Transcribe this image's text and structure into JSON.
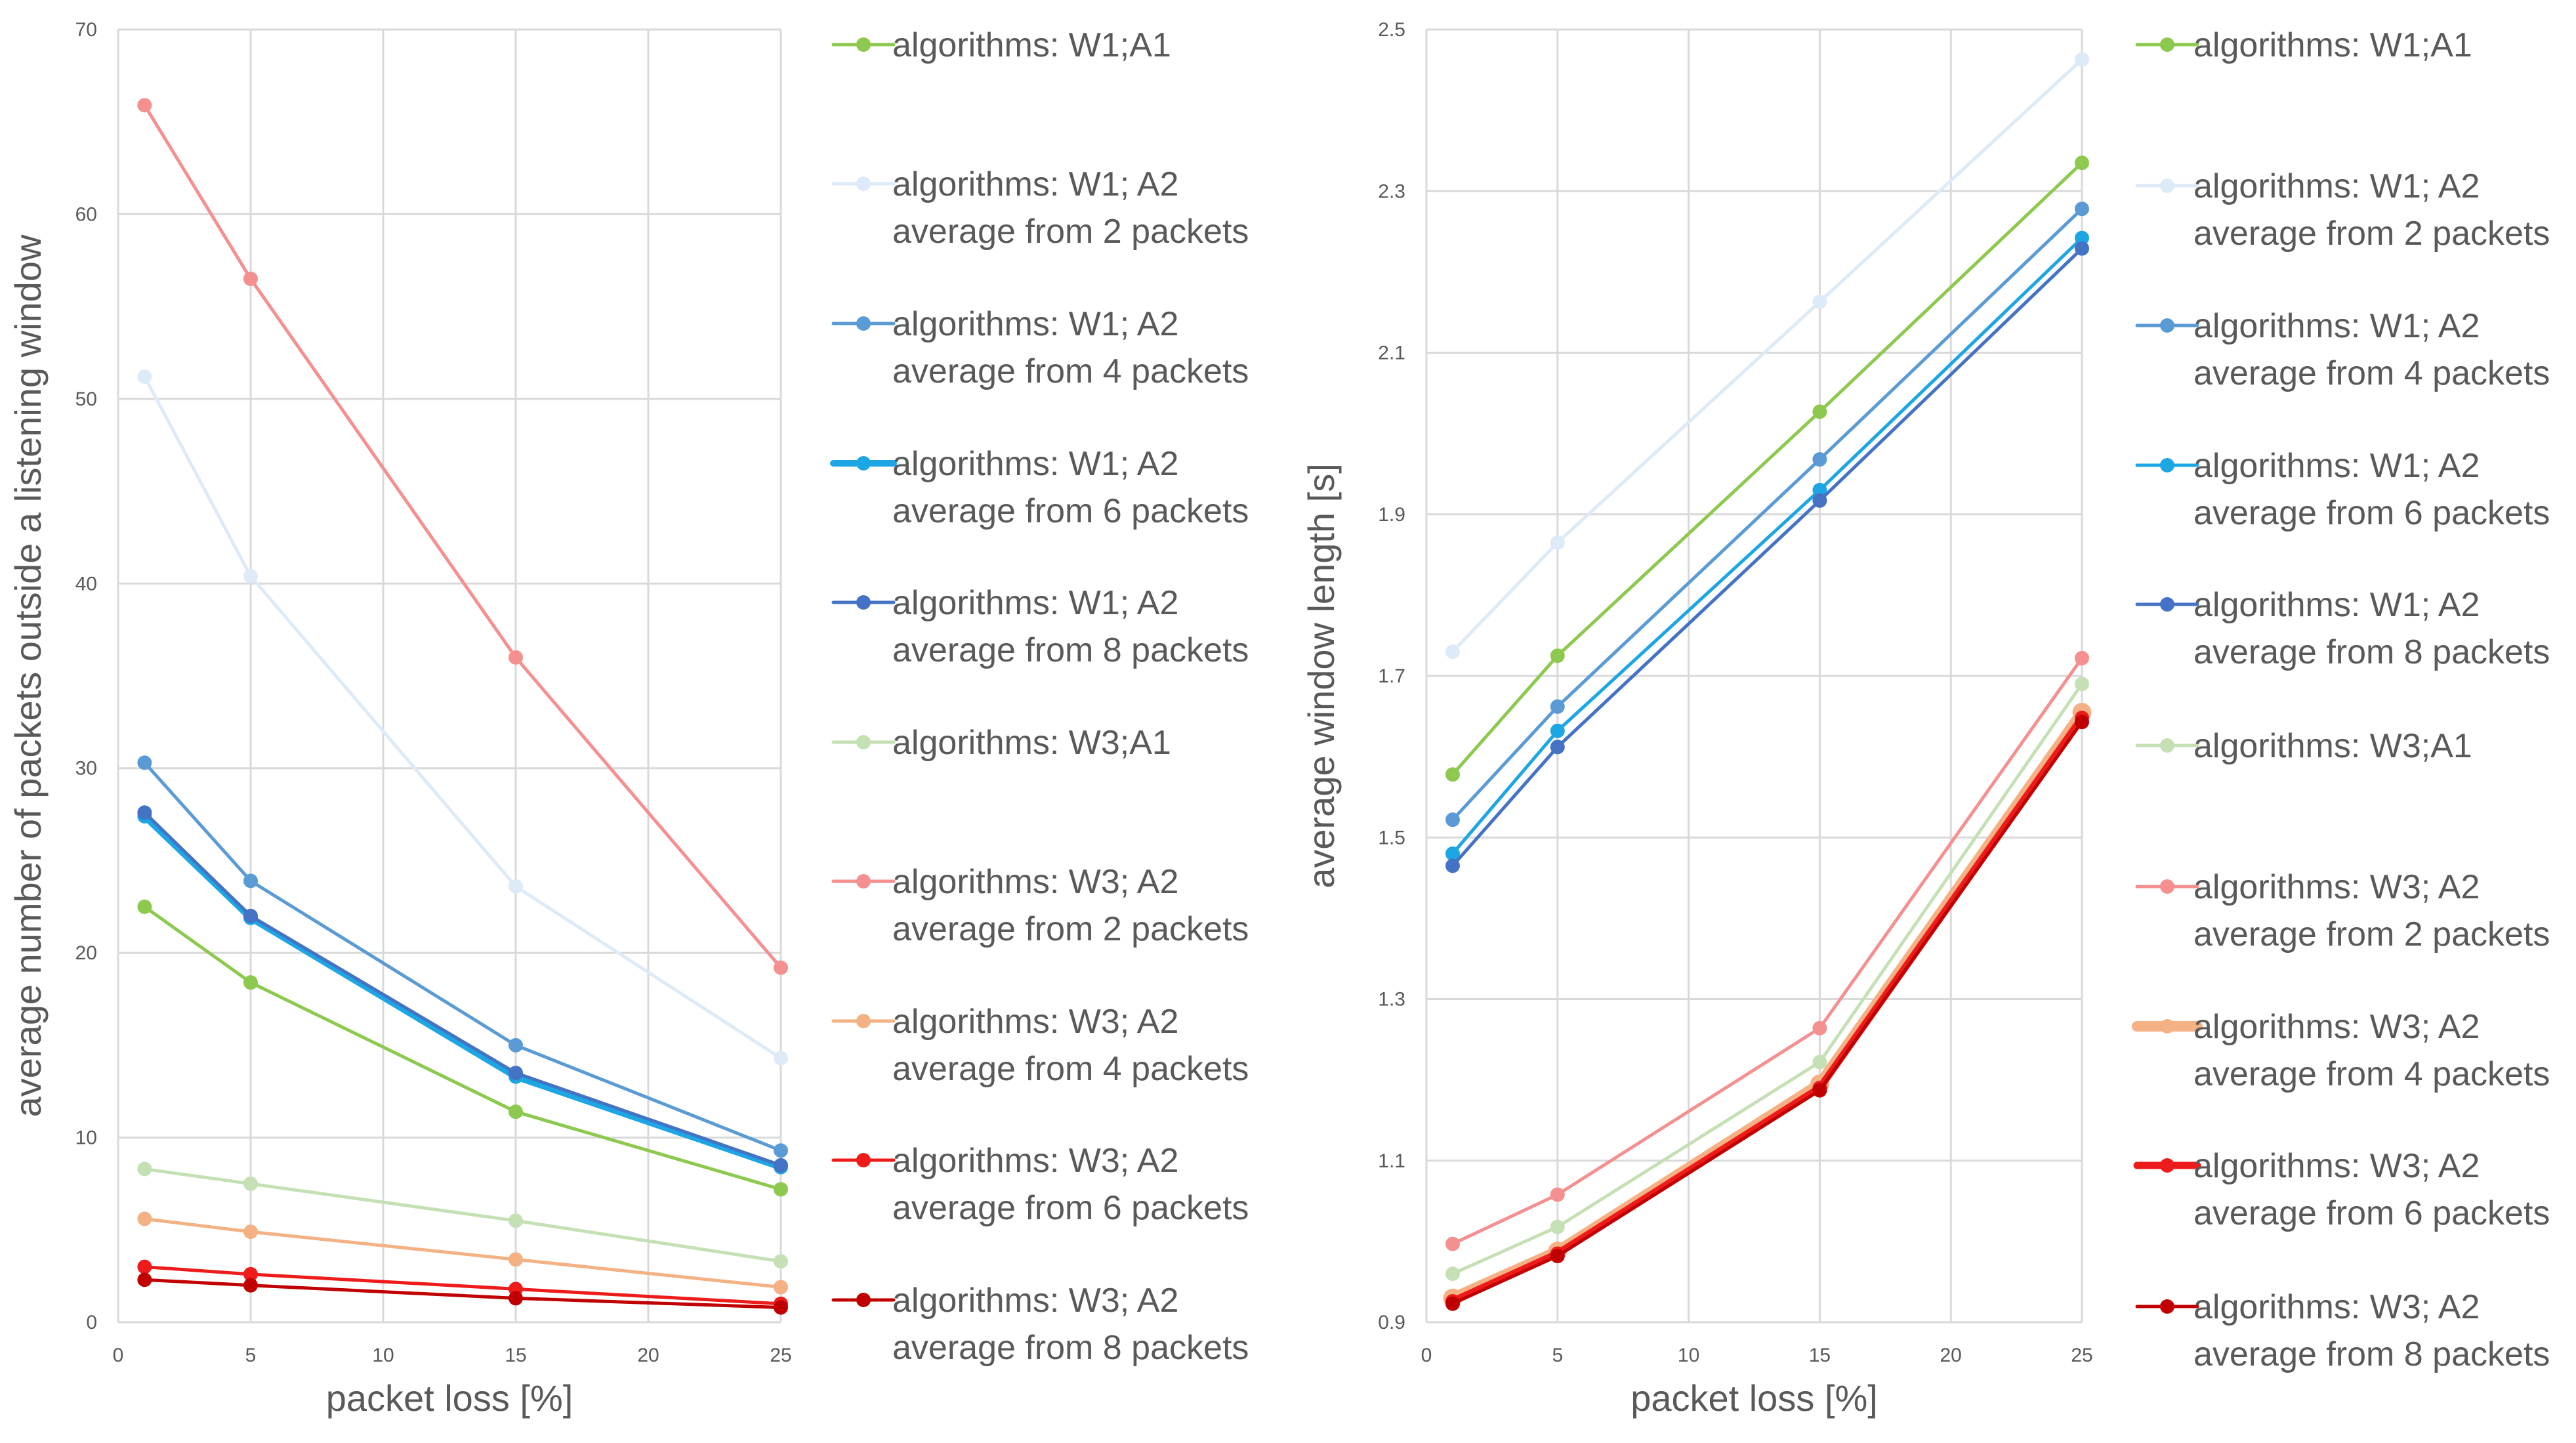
{
  "chart_data": [
    {
      "type": "line",
      "ylabel": "average number of packets outside a listening window",
      "xlabel": "packet loss [%]",
      "xlim": [
        0,
        25
      ],
      "ylim": [
        0,
        70
      ],
      "xticks": [
        "0",
        "5",
        "10",
        "15",
        "20",
        "25"
      ],
      "yticks": [
        "0",
        "10",
        "20",
        "30",
        "40",
        "50",
        "60",
        "70"
      ],
      "x": [
        1,
        5,
        15,
        25
      ],
      "grid": true,
      "legend_position": "right",
      "series": [
        {
          "name_line1": "algorithms: W1;A1",
          "name_line2": "",
          "color": "#8cc94e",
          "width": 5,
          "values": [
            22.5,
            18.4,
            11.4,
            7.2
          ]
        },
        {
          "name_line1": "algorithms: W1; A2",
          "name_line2": "average from 2 packets",
          "color": "#ddeaf7",
          "width": 5,
          "values": [
            51.2,
            40.4,
            23.6,
            14.3
          ]
        },
        {
          "name_line1": "algorithms: W1; A2",
          "name_line2": "average from 4 packets",
          "color": "#5b9bd5",
          "width": 5,
          "values": [
            30.3,
            23.9,
            15.0,
            9.3
          ]
        },
        {
          "name_line1": "algorithms: W1; A2",
          "name_line2": "average from 6 packets",
          "color": "#1ca6e3",
          "width": 10,
          "values": [
            27.4,
            21.9,
            13.3,
            8.4
          ]
        },
        {
          "name_line1": "algorithms: W1; A2",
          "name_line2": "average from 8 packets",
          "color": "#4472c4",
          "width": 5,
          "values": [
            27.6,
            22.0,
            13.5,
            8.5
          ]
        },
        {
          "name_line1": "algorithms: W3;A1",
          "name_line2": "",
          "color": "#c5e0b4",
          "width": 5,
          "values": [
            8.3,
            7.5,
            5.5,
            3.3
          ]
        },
        {
          "name_line1": "algorithms: W3; A2",
          "name_line2": "average from 2 packets",
          "color": "#f4908f",
          "width": 5,
          "values": [
            65.9,
            56.5,
            36.0,
            19.2
          ]
        },
        {
          "name_line1": "algorithms: W3; A2",
          "name_line2": "average from 4 packets",
          "color": "#f4b183",
          "width": 5,
          "values": [
            5.6,
            4.9,
            3.4,
            1.9
          ]
        },
        {
          "name_line1": "algorithms: W3; A2",
          "name_line2": "average from 6 packets",
          "color": "#ee1b1b",
          "width": 5,
          "values": [
            3.0,
            2.6,
            1.8,
            1.0
          ]
        },
        {
          "name_line1": "algorithms: W3; A2",
          "name_line2": "average from 8 packets",
          "color": "#c00000",
          "width": 5,
          "values": [
            2.3,
            2.0,
            1.3,
            0.8
          ]
        }
      ]
    },
    {
      "type": "line",
      "ylabel": "average window length [s]",
      "xlabel": "packet loss [%]",
      "xlim": [
        0,
        25
      ],
      "ylim": [
        0.9,
        2.5
      ],
      "xticks": [
        "0",
        "5",
        "10",
        "15",
        "20",
        "25"
      ],
      "yticks": [
        "0.9",
        "1.1",
        "1.3",
        "1.5",
        "1.7",
        "1.9",
        "2.1",
        "2.3",
        "2.5"
      ],
      "x": [
        1,
        5,
        15,
        25
      ],
      "grid": true,
      "legend_position": "right",
      "series": [
        {
          "name_line1": "algorithms: W1;A1",
          "name_line2": "",
          "color": "#8cc94e",
          "width": 5,
          "values": [
            1.578,
            1.725,
            2.027,
            2.335
          ]
        },
        {
          "name_line1": "algorithms: W1; A2",
          "name_line2": "average from 2 packets",
          "color": "#ddeaf7",
          "width": 5,
          "values": [
            1.73,
            1.865,
            2.163,
            2.463
          ]
        },
        {
          "name_line1": "algorithms: W1; A2",
          "name_line2": "average from 4 packets",
          "color": "#5b9bd5",
          "width": 5,
          "values": [
            1.522,
            1.662,
            1.968,
            2.278
          ]
        },
        {
          "name_line1": "algorithms: W1; A2",
          "name_line2": "average from 6 packets",
          "color": "#1ca6e3",
          "width": 5,
          "values": [
            1.48,
            1.632,
            1.93,
            2.242
          ]
        },
        {
          "name_line1": "algorithms: W1; A2",
          "name_line2": "average from 8 packets",
          "color": "#4472c4",
          "width": 5,
          "values": [
            1.465,
            1.612,
            1.917,
            2.229
          ]
        },
        {
          "name_line1": "algorithms: W3;A1",
          "name_line2": "",
          "color": "#c5e0b4",
          "width": 5,
          "values": [
            0.96,
            1.018,
            1.222,
            1.69
          ]
        },
        {
          "name_line1": "algorithms: W3; A2",
          "name_line2": "average from 2 packets",
          "color": "#f4908f",
          "width": 5,
          "values": [
            0.997,
            1.058,
            1.264,
            1.722
          ]
        },
        {
          "name_line1": "algorithms: W3; A2",
          "name_line2": "average from 4 packets",
          "color": "#f4b183",
          "width": 16,
          "values": [
            0.93,
            0.988,
            1.195,
            1.655
          ]
        },
        {
          "name_line1": "algorithms: W3; A2",
          "name_line2": "average from 6 packets",
          "color": "#ee1b1b",
          "width": 11,
          "values": [
            0.926,
            0.985,
            1.19,
            1.648
          ]
        },
        {
          "name_line1": "algorithms: W3; A2",
          "name_line2": "average from 8 packets",
          "color": "#c00000",
          "width": 5,
          "values": [
            0.923,
            0.982,
            1.187,
            1.643
          ]
        }
      ]
    }
  ]
}
